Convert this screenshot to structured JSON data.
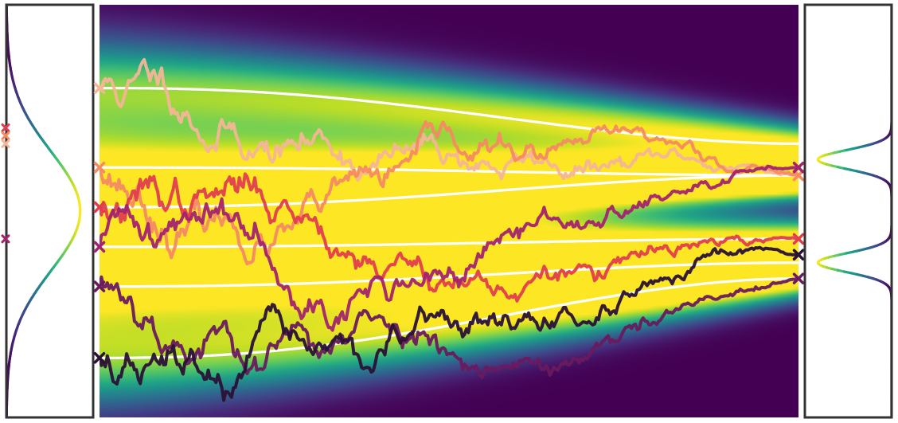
{
  "chart_data": [
    {
      "type": "line",
      "panel": "left-marginal",
      "orientation": "vertical-density",
      "title": "",
      "xlabel": "",
      "ylabel": "",
      "ylim": [
        -2.6,
        2.6
      ],
      "colormap": "viridis",
      "density": {
        "kind": "gaussian",
        "mean": 0.0,
        "std": 0.75,
        "peak": 0.85
      },
      "markers": [
        {
          "y": 1.05,
          "color": "#e23d4d"
        },
        {
          "y": 0.95,
          "color": "#f58a63"
        },
        {
          "y": 0.85,
          "color": "#f6b597"
        },
        {
          "y": -0.35,
          "color": "#a3236f"
        }
      ]
    },
    {
      "type": "heatmap",
      "panel": "center",
      "title": "",
      "xlabel": "",
      "ylabel": "",
      "xlim": [
        0,
        1
      ],
      "ylim": [
        -2.6,
        2.6
      ],
      "colormap": "viridis",
      "background": "#440154",
      "mode_paths": {
        "color": "#ffffff",
        "start": [
          1.55,
          0.55,
          0.05,
          -0.45,
          -0.95,
          -1.85
        ],
        "end": [
          0.85,
          0.45,
          0.45,
          -0.35,
          -0.65,
          -0.85
        ]
      },
      "series": [
        {
          "name": "",
          "color": "#f6b597",
          "start": 1.55,
          "end": 0.45,
          "seed": 11
        },
        {
          "name": "",
          "color": "#f58a63",
          "start": 0.55,
          "end": 0.45,
          "seed": 23
        },
        {
          "name": "",
          "color": "#e23d4d",
          "start": 0.05,
          "end": -0.35,
          "seed": 37
        },
        {
          "name": "",
          "color": "#a3236f",
          "start": -0.45,
          "end": 0.55,
          "seed": 41
        },
        {
          "name": "",
          "color": "#6a1a5e",
          "start": -0.95,
          "end": -0.85,
          "seed": 53
        },
        {
          "name": "",
          "color": "#2a1136",
          "start": -1.85,
          "end": -0.55,
          "seed": 67
        }
      ]
    },
    {
      "type": "line",
      "panel": "right-marginal",
      "orientation": "vertical-density",
      "title": "",
      "xlabel": "",
      "ylabel": "",
      "ylim": [
        -2.6,
        2.6
      ],
      "colormap": "viridis",
      "density": {
        "kind": "gaussian-mixture",
        "components": [
          {
            "mean": 0.65,
            "std": 0.12,
            "weight": 0.5
          },
          {
            "mean": -0.65,
            "std": 0.12,
            "weight": 0.5
          }
        ],
        "peak": 0.85
      }
    }
  ]
}
